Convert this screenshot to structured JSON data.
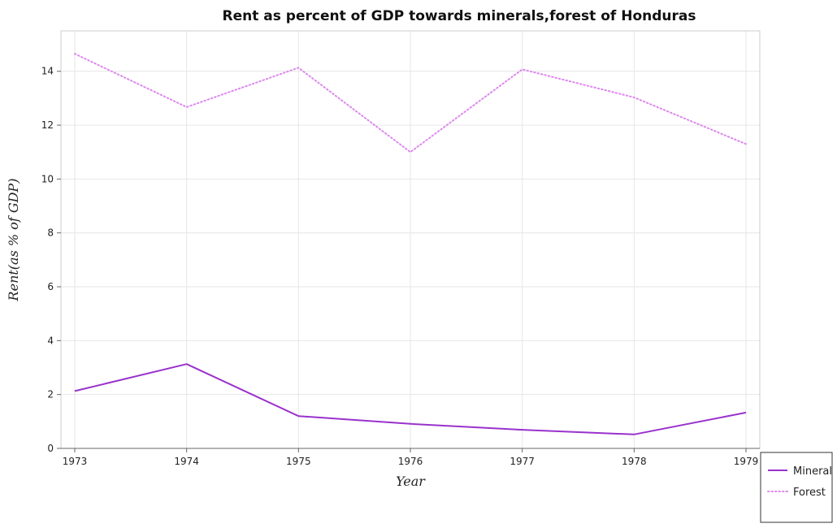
{
  "chart_data": {
    "type": "line",
    "title": "Rent as percent of GDP towards minerals,forest of Honduras",
    "xlabel": "Year",
    "ylabel": "Rent(as % of GDP)",
    "categories": [
      "1973",
      "1974",
      "1975",
      "1976",
      "1977",
      "1978",
      "1979"
    ],
    "ylim": [
      0,
      15.5
    ],
    "yticks": [
      "0",
      "2",
      "4",
      "6",
      "8",
      "10",
      "12",
      "14"
    ],
    "grid": true,
    "legend_position": "bottom-right",
    "series": [
      {
        "name": "Mineral",
        "values": [
          2.13,
          3.13,
          1.2,
          0.91,
          0.69,
          0.52,
          1.33
        ],
        "color": "#9932cc",
        "style": "solid"
      },
      {
        "name": "Forest",
        "values": [
          14.65,
          12.67,
          14.13,
          11.0,
          14.07,
          13.03,
          11.3
        ],
        "color": "#dd88ee",
        "style": "dotted"
      }
    ]
  }
}
